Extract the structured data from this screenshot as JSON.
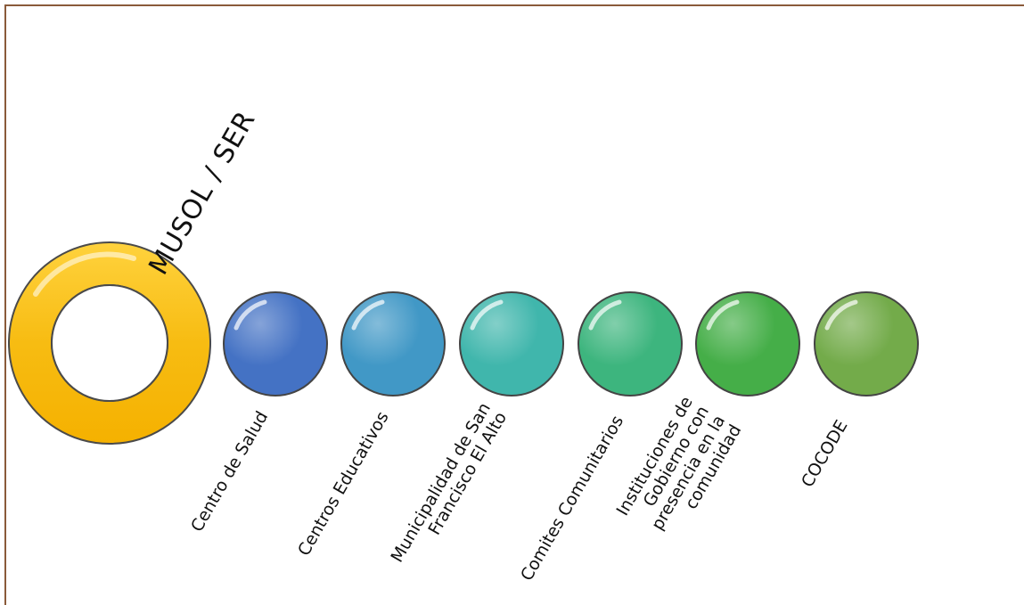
{
  "diagram": {
    "hub": {
      "label": "MUSOL / SER",
      "ring_color": "#F7BC12"
    },
    "nodes": [
      {
        "label": "Centro de Salud",
        "color": "#4472C4"
      },
      {
        "label": "Centros Educativos",
        "color": "#4198C6"
      },
      {
        "label": "Municipalidad de San Francisco El Alto",
        "color": "#40B6AC"
      },
      {
        "label": "Comites Comunitarios",
        "color": "#3DB57E"
      },
      {
        "label": "Instituciones de Gobierno con presencia en la comunidad",
        "color": "#45AE48"
      },
      {
        "label": "COCODE",
        "color": "#73AB4A"
      }
    ]
  }
}
